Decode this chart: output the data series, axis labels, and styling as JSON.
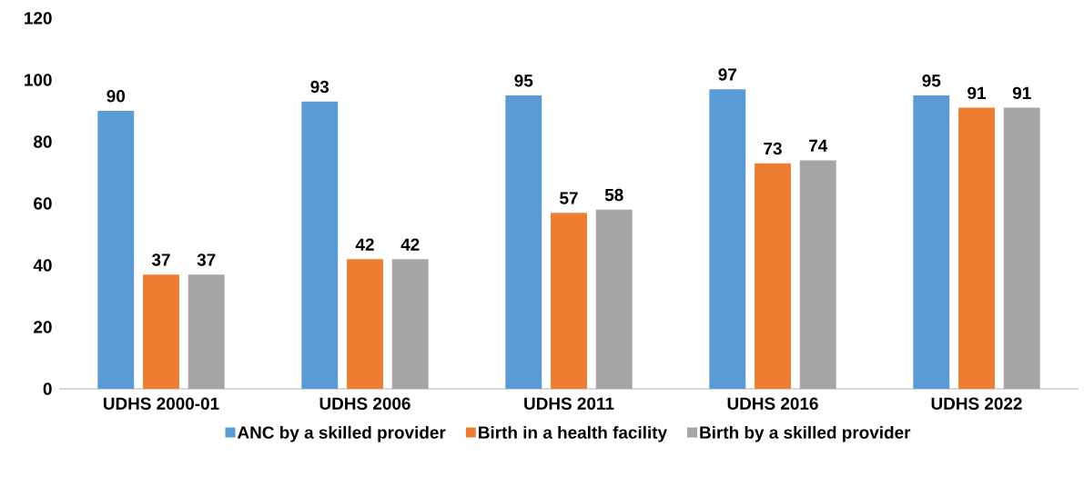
{
  "chart_data": {
    "type": "bar",
    "categories": [
      "UDHS 2000-01",
      "UDHS 2006",
      "UDHS 2011",
      "UDHS 2016",
      "UDHS 2022"
    ],
    "series": [
      {
        "name": "ANC by a skilled provider",
        "color": "#5b9bd5",
        "values": [
          90,
          93,
          95,
          97,
          95
        ]
      },
      {
        "name": "Birth in a health facility",
        "color": "#ed7d31",
        "values": [
          37,
          42,
          57,
          73,
          91
        ]
      },
      {
        "name": "Birth by a skilled provider",
        "color": "#a5a5a5",
        "values": [
          37,
          42,
          58,
          74,
          91
        ]
      }
    ],
    "ylim": [
      0,
      120
    ],
    "yticks": [
      0,
      20,
      40,
      60,
      80,
      100,
      120
    ],
    "data_labels": true,
    "legend": "bottom"
  }
}
